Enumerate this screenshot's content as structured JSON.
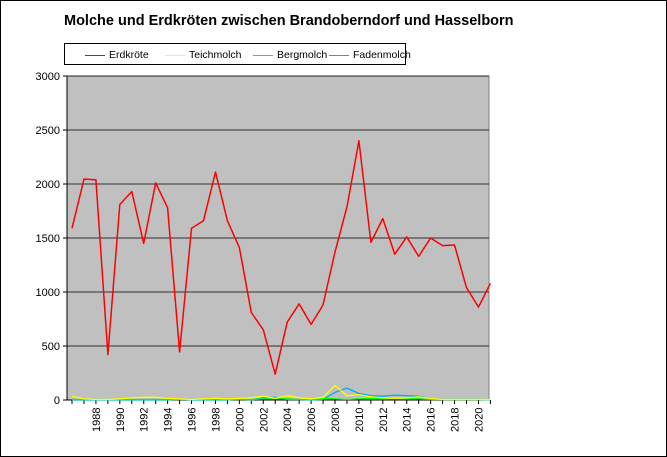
{
  "chart_data": {
    "type": "line",
    "title": "Molche und Erdkröten zwischen Brandoberndorf und Hasselborn",
    "xlabel": "",
    "ylabel": "",
    "ylim": [
      0,
      3000
    ],
    "y_ticks": [
      0,
      500,
      1000,
      1500,
      2000,
      2500,
      3000
    ],
    "x_tick_labels": [
      "1988",
      "1990",
      "1992",
      "1994",
      "1996",
      "1998",
      "2000",
      "2002",
      "2004",
      "2006",
      "2008",
      "2010",
      "2012",
      "2014",
      "2016",
      "2018",
      "2020"
    ],
    "x": [
      1986,
      1987,
      1988,
      1989,
      1990,
      1991,
      1992,
      1993,
      1994,
      1995,
      1996,
      1997,
      1998,
      1999,
      2000,
      2001,
      2002,
      2003,
      2004,
      2005,
      2006,
      2007,
      2008,
      2009,
      2010,
      2011,
      2012,
      2013,
      2014,
      2015,
      2016,
      2017,
      2018,
      2019,
      2020,
      2021
    ],
    "grid": true,
    "legend_position": "top-left",
    "plot_background": "#c0c0c0",
    "series": [
      {
        "name": "Erdkröte",
        "color": "#ff0000",
        "values": [
          1590,
          2045,
          2040,
          420,
          1810,
          1930,
          1450,
          2010,
          1780,
          445,
          1590,
          1660,
          2110,
          1660,
          1410,
          810,
          650,
          240,
          720,
          890,
          700,
          880,
          1370,
          1790,
          2400,
          1460,
          1680,
          1350,
          1510,
          1330,
          1500,
          1430,
          1435,
          1040,
          860,
          1080
        ]
      },
      {
        "name": "Teichmolch",
        "color": "#ffff00",
        "values": [
          35,
          10,
          5,
          5,
          10,
          20,
          25,
          25,
          15,
          10,
          5,
          10,
          15,
          10,
          15,
          20,
          35,
          15,
          40,
          20,
          10,
          25,
          135,
          40,
          50,
          30,
          20,
          15,
          20,
          30,
          15,
          5,
          5,
          5,
          5,
          5
        ]
      },
      {
        "name": "Bergmolch",
        "color": "#00ff00",
        "values": [
          5,
          5,
          5,
          5,
          5,
          5,
          5,
          5,
          5,
          5,
          5,
          5,
          5,
          5,
          5,
          5,
          10,
          10,
          10,
          5,
          5,
          15,
          10,
          5,
          10,
          15,
          15,
          10,
          15,
          10,
          5,
          5,
          5,
          5,
          5,
          5
        ]
      },
      {
        "name": "Fadenmolch",
        "color": "#00aaff",
        "values": [
          0,
          0,
          0,
          0,
          0,
          0,
          0,
          0,
          0,
          10,
          0,
          0,
          0,
          0,
          10,
          0,
          20,
          25,
          5,
          5,
          0,
          5,
          70,
          110,
          60,
          40,
          35,
          45,
          40,
          35,
          15,
          5,
          5,
          5,
          5,
          0
        ]
      }
    ]
  }
}
